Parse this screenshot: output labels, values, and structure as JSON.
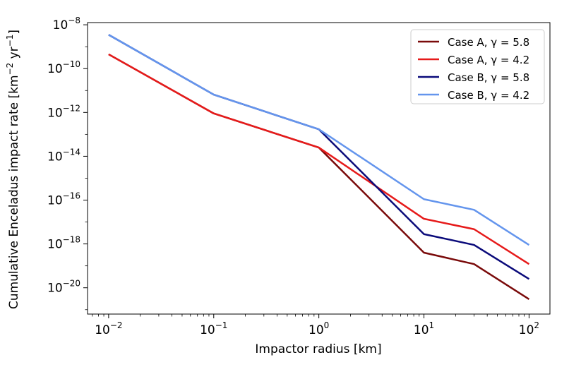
{
  "chart_data": {
    "type": "line",
    "xscale": "log",
    "yscale": "log",
    "xlabel": "Impactor radius [km]",
    "ylabel_main": "Cumulative Enceladus impact rate [km",
    "ylabel_exp1": "−2",
    "ylabel_mid": " yr",
    "ylabel_exp2": "−1",
    "ylabel_end": "]",
    "xlim": [
      0.0063,
      158
    ],
    "ylim": [
      6.3e-22,
      1.26e-08
    ],
    "x_ticks": [
      {
        "value": 0.01,
        "base": "10",
        "exp": "−2"
      },
      {
        "value": 0.1,
        "base": "10",
        "exp": "−1"
      },
      {
        "value": 1,
        "base": "10",
        "exp": "0"
      },
      {
        "value": 10,
        "base": "10",
        "exp": "1"
      },
      {
        "value": 100,
        "base": "10",
        "exp": "2"
      }
    ],
    "y_ticks": [
      {
        "value": 1e-08,
        "base": "10",
        "exp": "−8"
      },
      {
        "value": 1e-10,
        "base": "10",
        "exp": "−10"
      },
      {
        "value": 1e-12,
        "base": "10",
        "exp": "−12"
      },
      {
        "value": 1e-14,
        "base": "10",
        "exp": "−14"
      },
      {
        "value": 1e-16,
        "base": "10",
        "exp": "−16"
      },
      {
        "value": 1e-18,
        "base": "10",
        "exp": "−18"
      },
      {
        "value": 1e-20,
        "base": "10",
        "exp": "−20"
      }
    ],
    "legend_position": "top-right",
    "series": [
      {
        "name": "Case A,  γ = 5.8",
        "color": "#7a0a0a",
        "x": [
          0.01,
          0.1,
          1,
          10,
          30,
          100
        ],
        "y": [
          4.5e-10,
          9e-13,
          2.5e-14,
          4e-19,
          1.2e-19,
          3e-21
        ]
      },
      {
        "name": "Case A,  γ = 4.2",
        "color": "#e61a1a",
        "x": [
          0.01,
          0.1,
          1,
          10,
          30,
          100
        ],
        "y": [
          4.5e-10,
          9e-13,
          2.5e-14,
          1.4e-17,
          4.7e-18,
          1.2e-19
        ]
      },
      {
        "name": "Case B,  γ = 5.8",
        "color": "#0a0a7a",
        "x": [
          0.01,
          0.1,
          1,
          10,
          30,
          100
        ],
        "y": [
          3.5e-09,
          6.5e-12,
          1.7e-13,
          2.8e-18,
          9e-19,
          2.5e-20
        ]
      },
      {
        "name": "Case B,  γ = 4.2",
        "color": "#6495ed",
        "x": [
          0.01,
          0.1,
          1,
          10,
          30,
          100
        ],
        "y": [
          3.5e-09,
          6.5e-12,
          1.7e-13,
          1.1e-16,
          3.6e-17,
          9e-19
        ]
      }
    ]
  }
}
